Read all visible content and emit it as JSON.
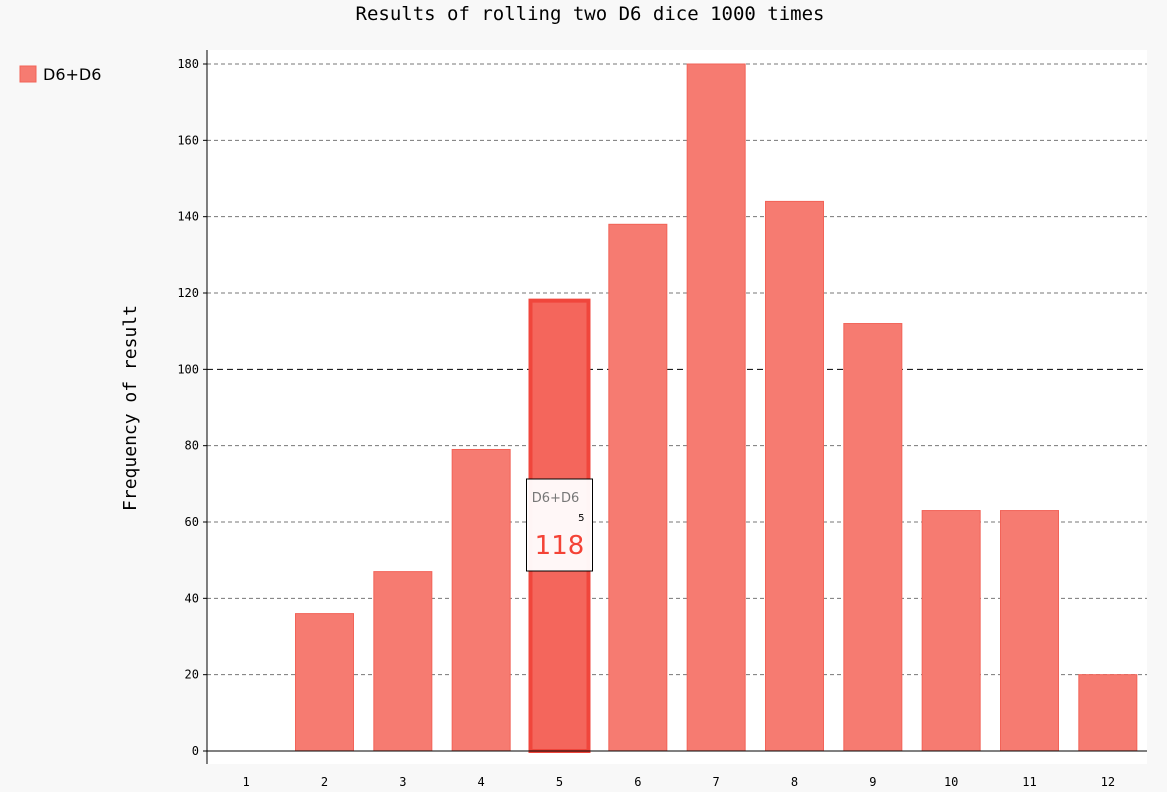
{
  "chart_data": {
    "type": "bar",
    "title": "Results of rolling two D6 dice 1000 times",
    "xlabel": "",
    "ylabel": "Frequency of result",
    "categories": [
      "1",
      "2",
      "3",
      "4",
      "5",
      "6",
      "7",
      "8",
      "9",
      "10",
      "11",
      "12"
    ],
    "series": [
      {
        "name": "D6+D6",
        "values": [
          0,
          36,
          47,
          79,
          118,
          138,
          180,
          144,
          112,
          63,
          63,
          20
        ]
      }
    ],
    "ylim": [
      0,
      180
    ],
    "yticks": [
      0,
      20,
      40,
      60,
      80,
      100,
      120,
      140,
      160,
      180
    ],
    "grid": true,
    "legend": "top-left",
    "colors": {
      "bar_fill": "#f67b71",
      "bar_stroke": "#f26358",
      "highlight_fill": "#f4665c",
      "highlight_stroke": "#f0463c",
      "tooltip_value": "#f44336",
      "plot_background": "#ffffff",
      "page_background": "#f8f8f8"
    },
    "tooltip": {
      "series": "D6+D6",
      "x_label": "5",
      "value": "118",
      "category_index": 4
    }
  }
}
